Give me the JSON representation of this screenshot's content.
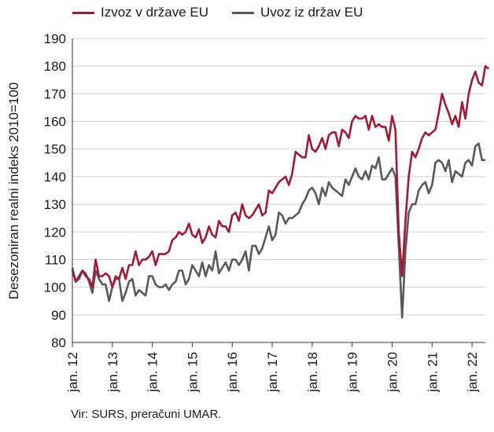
{
  "chart_data": {
    "type": "line",
    "ylabel": "Desezoniran realni indeks 2010=100",
    "ylim": [
      80,
      190
    ],
    "yticks": [
      80,
      90,
      100,
      110,
      120,
      130,
      140,
      150,
      160,
      170,
      180,
      190
    ],
    "xlim": [
      0,
      124
    ],
    "xticks": [
      {
        "label": "jan. 12",
        "x": 0
      },
      {
        "label": "jan. 13",
        "x": 12
      },
      {
        "label": "jan. 14",
        "x": 24
      },
      {
        "label": "jan. 15",
        "x": 36
      },
      {
        "label": "jan. 16",
        "x": 48
      },
      {
        "label": "jan. 17",
        "x": 60
      },
      {
        "label": "jan. 18",
        "x": 72
      },
      {
        "label": "jan. 19",
        "x": 84
      },
      {
        "label": "jan. 20",
        "x": 96
      },
      {
        "label": "jan. 21",
        "x": 108
      },
      {
        "label": "jan. 22",
        "x": 120
      }
    ],
    "grid": true,
    "legend_position": "top",
    "series": [
      {
        "name": "Izvoz v države EU",
        "color": "#a01a36",
        "values": [
          106,
          102,
          104,
          106,
          104,
          103,
          100,
          110,
          104,
          104,
          105,
          104,
          100,
          104,
          103,
          107,
          103,
          108,
          108,
          113,
          108,
          110,
          110,
          111,
          113,
          108,
          112,
          112,
          112,
          113,
          117,
          118,
          120,
          119,
          120,
          123,
          119,
          118,
          121,
          116,
          118,
          122,
          119,
          118,
          124,
          122,
          122,
          120,
          126,
          127,
          124,
          130,
          126,
          125,
          126,
          128,
          130,
          126,
          127,
          135,
          134,
          136,
          138,
          139,
          140,
          137,
          141,
          149,
          148,
          147,
          147,
          155,
          150,
          149,
          151,
          154,
          150,
          155,
          156,
          156,
          151,
          157,
          156,
          154,
          160,
          162,
          161,
          161,
          162,
          157,
          162,
          158,
          159,
          158,
          158,
          153,
          162,
          157,
          120,
          104,
          124,
          140,
          149,
          147,
          150,
          154,
          156,
          155,
          156,
          157,
          163,
          170,
          166,
          163,
          159,
          162,
          158,
          167,
          161,
          170,
          175,
          178,
          174,
          173,
          180,
          179
        ]
      },
      {
        "name": "Uvoz iz držav EU",
        "color": "#595959",
        "values": [
          107,
          102,
          103,
          106,
          105,
          102,
          98,
          106,
          103,
          101,
          101,
          95,
          100,
          103,
          103,
          95,
          98,
          102,
          103,
          97,
          99,
          98,
          97,
          104,
          104,
          101,
          100,
          100,
          101,
          99,
          101,
          102,
          106,
          106,
          101,
          103,
          108,
          106,
          104,
          109,
          104,
          108,
          106,
          113,
          105,
          107,
          109,
          106,
          110,
          110,
          108,
          110,
          113,
          106,
          115,
          115,
          112,
          114,
          118,
          122,
          117,
          119,
          127,
          126,
          123,
          125,
          125,
          126,
          127,
          130,
          132,
          135,
          136,
          134,
          130,
          136,
          133,
          138,
          136,
          135,
          134,
          133,
          139,
          137,
          140,
          143,
          140,
          139,
          142,
          139,
          144,
          143,
          147,
          139,
          139,
          141,
          143,
          140,
          115,
          89,
          113,
          127,
          130,
          130,
          135,
          137,
          138,
          134,
          137,
          145,
          146,
          145,
          142,
          146,
          138,
          142,
          141,
          140,
          145,
          146,
          144,
          151,
          152,
          146,
          146
        ]
      }
    ]
  },
  "legend": {
    "items": [
      {
        "label": "Izvoz v države EU",
        "color": "#a01a36"
      },
      {
        "label": "Uvoz iz držav EU",
        "color": "#595959"
      }
    ]
  },
  "source": "Vir: SURS, preračuni UMAR."
}
